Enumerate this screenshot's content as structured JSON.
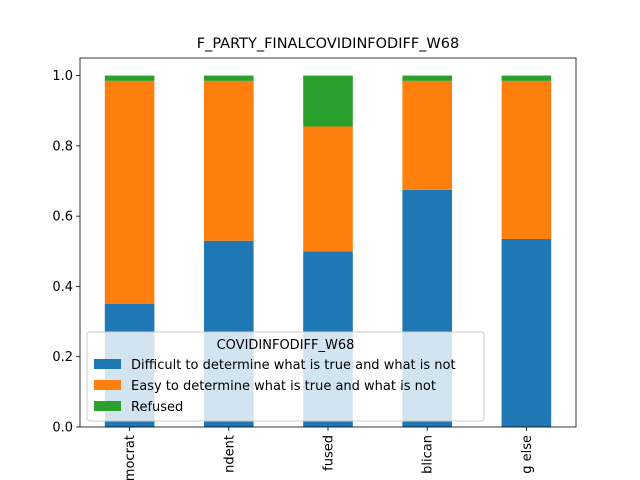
{
  "chart_data": {
    "type": "bar",
    "stacked": true,
    "title": "F_PARTY_FINALCOVIDINFODIFF_W68",
    "xlabel": "",
    "ylabel": "",
    "categories": [
      "mocrat",
      "ndent",
      "fused",
      "blican",
      "g else"
    ],
    "ylim": [
      0,
      1.05
    ],
    "yticks": [
      0.0,
      0.2,
      0.4,
      0.6,
      0.8,
      1.0
    ],
    "ytick_labels": [
      "0.0",
      "0.2",
      "0.4",
      "0.6",
      "0.8",
      "1.0"
    ],
    "series": [
      {
        "name": "Difficult to determine what is true and what is not",
        "color": "#1f77b4",
        "values": [
          0.35,
          0.53,
          0.5,
          0.675,
          0.535
        ]
      },
      {
        "name": "Easy to determine what is true and what is not",
        "color": "#ff7f0e",
        "values": [
          0.635,
          0.455,
          0.355,
          0.31,
          0.45
        ]
      },
      {
        "name": "Refused",
        "color": "#2ca02c",
        "values": [
          0.015,
          0.015,
          0.145,
          0.015,
          0.015
        ]
      }
    ],
    "legend": {
      "title": "COVIDINFODIFF_W68",
      "placement": "lower-left"
    },
    "grid": false
  }
}
